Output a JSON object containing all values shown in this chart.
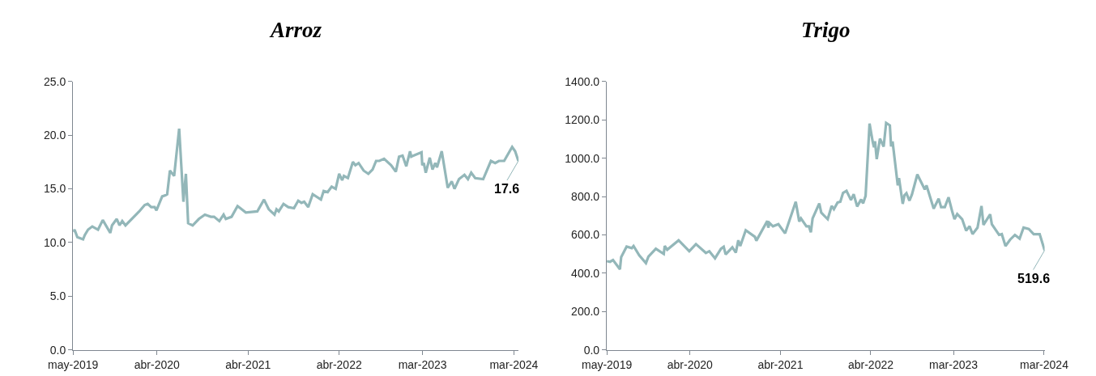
{
  "chart_data": [
    {
      "type": "line",
      "title": "Arroz",
      "color": "#93b7b9",
      "x": [
        "2019-05-01",
        "2019-05-07",
        "2019-05-18",
        "2019-06-10",
        "2019-06-17",
        "2019-06-30",
        "2019-07-17",
        "2019-08-09",
        "2019-08-28",
        "2019-09-27",
        "2019-10-04",
        "2019-10-23",
        "2019-11-03",
        "2019-11-14",
        "2019-11-27",
        "2020-01-21",
        "2020-02-12",
        "2020-02-24",
        "2020-03-09",
        "2020-03-23",
        "2020-03-30",
        "2020-04-22",
        "2020-05-05",
        "2020-05-12",
        "2020-05-23",
        "2020-06-09",
        "2020-06-29",
        "2020-07-16",
        "2020-07-26",
        "2020-08-04",
        "2020-08-22",
        "2020-09-16",
        "2020-10-10",
        "2020-11-03",
        "2020-11-16",
        "2020-12-07",
        "2020-12-24",
        "2021-01-02",
        "2021-01-25",
        "2021-02-18",
        "2021-03-23",
        "2021-05-08",
        "2021-06-04",
        "2021-06-23",
        "2021-07-16",
        "2021-07-24",
        "2021-08-02",
        "2021-08-21",
        "2021-09-09",
        "2021-10-02",
        "2021-10-19",
        "2021-11-01",
        "2021-11-12",
        "2021-11-28",
        "2021-12-16",
        "2022-01-18",
        "2022-01-29",
        "2022-02-14",
        "2022-03-02",
        "2022-03-18",
        "2022-04-01",
        "2022-04-13",
        "2022-04-20",
        "2022-05-06",
        "2022-05-26",
        "2022-06-05",
        "2022-06-18",
        "2022-07-08",
        "2022-07-27",
        "2022-08-13",
        "2022-08-27",
        "2022-09-09",
        "2022-09-28",
        "2022-10-26",
        "2022-11-14",
        "2022-11-27",
        "2022-12-11",
        "2022-12-26",
        "2023-01-10",
        "2023-01-15",
        "2023-02-25",
        "2023-02-28",
        "2023-03-06",
        "2023-03-14",
        "2023-03-30",
        "2023-04-10",
        "2023-04-21",
        "2023-04-28",
        "2023-05-17",
        "2023-06-10",
        "2023-06-26",
        "2023-07-07",
        "2023-07-25",
        "2023-08-16",
        "2023-08-30",
        "2023-09-12",
        "2023-09-28",
        "2023-10-30",
        "2023-11-30",
        "2023-12-17",
        "2024-01-01",
        "2024-01-22",
        "2024-02-23",
        "2024-03-06",
        "2024-03-19"
      ],
      "values": [
        11.0,
        11.2,
        10.5,
        10.3,
        10.7,
        11.2,
        11.5,
        11.2,
        12.1,
        10.9,
        11.6,
        12.2,
        11.6,
        12.0,
        11.6,
        12.9,
        13.5,
        13.6,
        13.3,
        13.3,
        13.0,
        14.3,
        14.4,
        14.5,
        16.7,
        16.2,
        20.6,
        13.8,
        16.4,
        11.8,
        11.6,
        12.2,
        12.6,
        12.4,
        12.4,
        12.0,
        12.6,
        12.2,
        12.4,
        13.4,
        12.8,
        12.9,
        14.0,
        13.1,
        12.6,
        13.1,
        12.9,
        13.6,
        13.3,
        13.2,
        13.9,
        13.7,
        13.8,
        13.3,
        14.5,
        14.0,
        14.8,
        14.7,
        15.2,
        15.0,
        16.4,
        15.8,
        16.2,
        16.0,
        17.5,
        17.2,
        17.4,
        16.7,
        16.4,
        16.8,
        17.6,
        17.6,
        17.8,
        17.2,
        16.6,
        18.0,
        18.1,
        17.1,
        18.5,
        18.0,
        18.4,
        17.2,
        17.4,
        16.5,
        17.9,
        16.8,
        17.4,
        17.0,
        18.5,
        15.1,
        15.7,
        15.0,
        15.9,
        16.3,
        15.9,
        16.5,
        16.0,
        15.9,
        17.6,
        17.4,
        17.6,
        17.6,
        18.9,
        18.5,
        17.6
      ],
      "xlim": [
        "2019-05-01",
        "2024-03-20"
      ],
      "xticks": [
        {
          "value": "2019-05-01",
          "label": "may-2019"
        },
        {
          "value": "2020-04-01",
          "label": "abr-2020"
        },
        {
          "value": "2021-04-01",
          "label": "abr-2021"
        },
        {
          "value": "2022-04-01",
          "label": "abr-2022"
        },
        {
          "value": "2023-03-01",
          "label": "mar-2023"
        },
        {
          "value": "2024-03-01",
          "label": "mar-2024"
        }
      ],
      "ylim": [
        0,
        25
      ],
      "yticks": [
        {
          "value": 0,
          "label": "0.0"
        },
        {
          "value": 5,
          "label": "5.0"
        },
        {
          "value": 10,
          "label": "10.0"
        },
        {
          "value": 15,
          "label": "15.0"
        },
        {
          "value": 20,
          "label": "20.0"
        },
        {
          "value": 25,
          "label": "25.0"
        }
      ],
      "annotations": [
        {
          "text": "17.6",
          "x": "2024-03-19",
          "y": 17.6
        }
      ]
    },
    {
      "type": "line",
      "title": "Trigo",
      "color": "#93b7b9",
      "x": [
        "2019-05-01",
        "2019-05-14",
        "2019-05-26",
        "2019-06-23",
        "2019-06-28",
        "2019-07-20",
        "2019-08-10",
        "2019-08-17",
        "2019-09-09",
        "2019-10-06",
        "2019-10-16",
        "2019-11-15",
        "2019-12-17",
        "2019-12-21",
        "2019-12-31",
        "2020-02-15",
        "2020-03-29",
        "2020-04-25",
        "2020-06-04",
        "2020-06-18",
        "2020-07-11",
        "2020-08-04",
        "2020-08-15",
        "2020-08-23",
        "2020-09-19",
        "2020-10-03",
        "2020-10-13",
        "2020-10-21",
        "2020-11-12",
        "2020-12-19",
        "2020-12-25",
        "2021-02-07",
        "2021-02-11",
        "2021-02-16",
        "2021-03-02",
        "2021-03-24",
        "2021-04-20",
        "2021-06-02",
        "2021-06-16",
        "2021-06-23",
        "2021-07-15",
        "2021-07-25",
        "2021-08-02",
        "2021-08-09",
        "2021-09-05",
        "2021-09-13",
        "2021-10-09",
        "2021-10-25",
        "2021-11-03",
        "2021-11-18",
        "2021-11-29",
        "2021-12-10",
        "2021-12-24",
        "2022-01-11",
        "2022-01-22",
        "2022-02-05",
        "2022-02-21",
        "2022-03-01",
        "2022-03-11",
        "2022-03-27",
        "2022-04-09",
        "2022-04-14",
        "2022-04-18",
        "2022-04-25",
        "2022-05-08",
        "2022-05-23",
        "2022-06-02",
        "2022-06-17",
        "2022-06-22",
        "2022-06-28",
        "2022-07-19",
        "2022-07-24",
        "2022-07-29",
        "2022-08-08",
        "2022-08-15",
        "2022-08-23",
        "2022-09-04",
        "2022-09-14",
        "2022-10-06",
        "2022-11-05",
        "2022-11-12",
        "2022-12-11",
        "2022-12-31",
        "2023-01-10",
        "2023-01-25",
        "2023-02-09",
        "2023-02-24",
        "2023-03-05",
        "2023-03-16",
        "2023-04-05",
        "2023-04-21",
        "2023-05-05",
        "2023-05-17",
        "2023-06-06",
        "2023-06-22",
        "2023-06-30",
        "2023-07-27",
        "2023-08-03",
        "2023-09-01",
        "2023-09-12",
        "2023-09-27",
        "2023-10-16",
        "2023-11-04",
        "2023-11-23",
        "2023-12-09",
        "2023-12-30",
        "2024-01-19",
        "2024-02-12",
        "2024-03-03"
      ],
      "values": [
        463,
        460,
        469,
        421,
        484,
        539,
        531,
        542,
        493,
        453,
        487,
        528,
        501,
        542,
        523,
        572,
        515,
        552,
        506,
        515,
        478,
        528,
        538,
        498,
        535,
        508,
        572,
        542,
        624,
        590,
        570,
        673,
        638,
        662,
        645,
        656,
        608,
        773,
        670,
        686,
        645,
        645,
        614,
        686,
        764,
        716,
        682,
        751,
        734,
        769,
        773,
        819,
        830,
        782,
        812,
        748,
        785,
        764,
        803,
        1180,
        1084,
        1057,
        1088,
        995,
        1102,
        1060,
        1184,
        1171,
        1061,
        1087,
        858,
        896,
        851,
        762,
        806,
        817,
        778,
        810,
        915,
        837,
        858,
        737,
        789,
        745,
        745,
        796,
        721,
        682,
        709,
        682,
        622,
        645,
        604,
        638,
        751,
        652,
        707,
        655,
        600,
        604,
        542,
        576,
        600,
        581,
        638,
        631,
        604,
        604,
        519.6
      ],
      "xlim": [
        "2019-05-01",
        "2024-03-03"
      ],
      "xticks": [
        {
          "value": "2019-05-01",
          "label": "may-2019"
        },
        {
          "value": "2020-04-01",
          "label": "abr-2020"
        },
        {
          "value": "2021-04-01",
          "label": "abr-2021"
        },
        {
          "value": "2022-04-01",
          "label": "abr-2022"
        },
        {
          "value": "2023-03-01",
          "label": "mar-2023"
        },
        {
          "value": "2024-03-01",
          "label": "mar-2024"
        }
      ],
      "ylim": [
        0,
        1400
      ],
      "yticks": [
        {
          "value": 0,
          "label": "0.0"
        },
        {
          "value": 200,
          "label": "200.0"
        },
        {
          "value": 400,
          "label": "400.0"
        },
        {
          "value": 600,
          "label": "600.0"
        },
        {
          "value": 800,
          "label": "800.0"
        },
        {
          "value": 1000,
          "label": "1000.0"
        },
        {
          "value": 1200,
          "label": "1200.0"
        },
        {
          "value": 1400,
          "label": "1400.0"
        }
      ],
      "annotations": [
        {
          "text": "519.6",
          "x": "2024-03-03",
          "y": 519.6
        }
      ]
    }
  ]
}
